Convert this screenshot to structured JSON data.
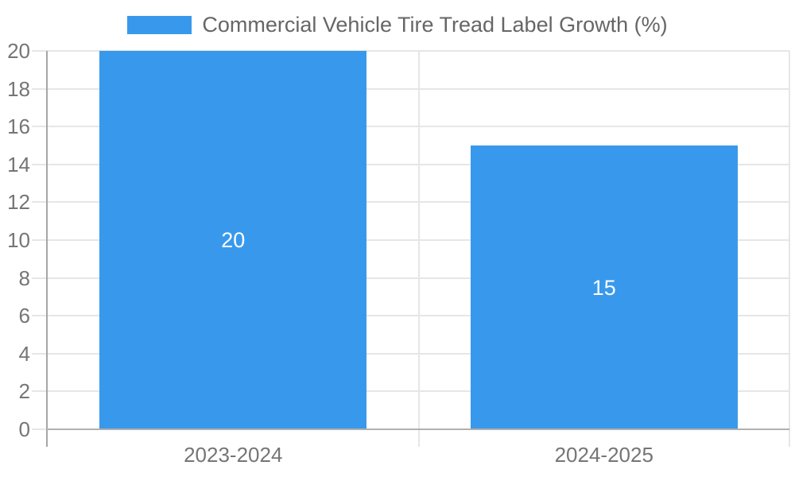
{
  "chart_data": {
    "type": "bar",
    "title": "Commercial Vehicle Tire Tread Label Growth (%)",
    "categories": [
      "2023-2024",
      "2024-2025"
    ],
    "values": [
      20,
      15
    ],
    "bar_value_labels": [
      "20",
      "15"
    ],
    "xlabel": "",
    "ylabel": "",
    "ylim": [
      0,
      20
    ],
    "ytick_step": 2,
    "yticks": [
      0,
      2,
      4,
      6,
      8,
      10,
      12,
      14,
      16,
      18,
      20
    ],
    "grid": true,
    "legend_position": "top"
  },
  "legend": {
    "swatch_color": "#3899EC"
  },
  "colors": {
    "bar": "#3899EC",
    "grid_line": "#E6E6E6",
    "y_axis_line": "#A6A6A6",
    "x_axis_line": "#B0B0B0",
    "tick_label": "#757575",
    "legend_text": "#666666",
    "value_label": "#FFFFFF",
    "background": "#FFFFFF"
  }
}
